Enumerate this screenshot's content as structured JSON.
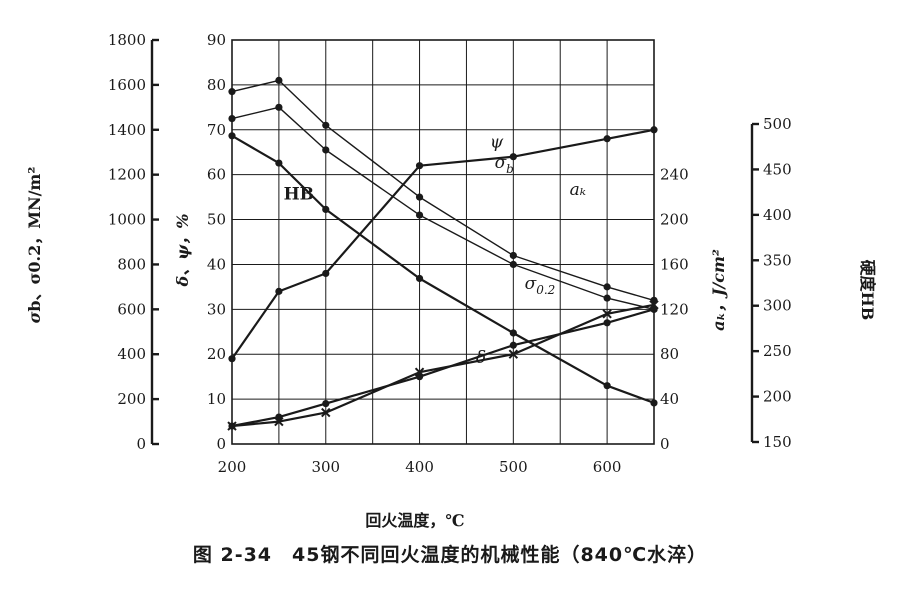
{
  "caption": "图 2-34　45钢不同回火温度的机械性能（840℃水淬）",
  "chart_data": {
    "type": "line",
    "x_title": "回火温度，℃",
    "x_ticks": [
      200,
      300,
      400,
      500,
      600
    ],
    "xlim": [
      200,
      650
    ],
    "axes": {
      "strength": {
        "title_main": "σ",
        "title_rest": "b、σ0.2，MN/m²",
        "ticks": [
          "0",
          "200",
          "400",
          "600",
          "800",
          "1000",
          "1200",
          "1400",
          "1600",
          "1800"
        ],
        "ylim": [
          0,
          1800
        ]
      },
      "percent": {
        "title": "δ、ψ，%",
        "ticks": [
          "0",
          "10",
          "20",
          "30",
          "40",
          "50",
          "60",
          "70",
          "80",
          "90"
        ],
        "ylim": [
          0,
          90
        ]
      },
      "impact": {
        "title": "aₖ，J/cm²",
        "ticks": [
          "0",
          "40",
          "80",
          "120",
          "160",
          "200",
          "240"
        ],
        "ylim": [
          0,
          360
        ]
      },
      "hardness": {
        "title": "硬度HB",
        "ticks": [
          "150",
          "200",
          "250",
          "300",
          "350",
          "400",
          "450",
          "500"
        ],
        "ylim": [
          150,
          500
        ]
      }
    },
    "series": [
      {
        "name": "σb",
        "sub": "b",
        "axis": "strength",
        "label_x": 480,
        "label_y": 1230,
        "x": [
          200,
          250,
          300,
          400,
          500,
          600,
          650
        ],
        "y": [
          1570,
          1620,
          1420,
          1100,
          840,
          700,
          640
        ]
      },
      {
        "name": "σ0.2",
        "sub": "0.2",
        "axis": "strength",
        "label_x": 512,
        "label_y": 690,
        "x": [
          200,
          250,
          300,
          400,
          500,
          600,
          650
        ],
        "y": [
          1450,
          1500,
          1310,
          1020,
          800,
          650,
          600
        ]
      },
      {
        "name": "HB",
        "axis": "hardness",
        "label_x": 255,
        "label_y": 417,
        "x": [
          200,
          250,
          300,
          400,
          500,
          600,
          650
        ],
        "y": [
          487,
          457,
          406,
          330,
          270,
          212,
          193
        ]
      },
      {
        "name": "ψ",
        "axis": "percent",
        "label_x": 475,
        "label_y": 66,
        "x": [
          200,
          250,
          300,
          400,
          500,
          600,
          650
        ],
        "y": [
          19,
          34,
          38,
          62,
          64,
          68,
          70
        ]
      },
      {
        "name": "δ",
        "axis": "percent",
        "label_x": 460,
        "label_y": 18,
        "x": [
          200,
          250,
          300,
          400,
          500,
          600,
          650
        ],
        "y": [
          4,
          6,
          9,
          15,
          22,
          27,
          30
        ]
      },
      {
        "name": "aₖ",
        "axis": "impact",
        "label_x": 560,
        "label_y": 222,
        "x": [
          200,
          250,
          300,
          400,
          500,
          600,
          650
        ],
        "y": [
          16,
          20,
          28,
          64,
          80,
          116,
          124
        ]
      }
    ]
  }
}
